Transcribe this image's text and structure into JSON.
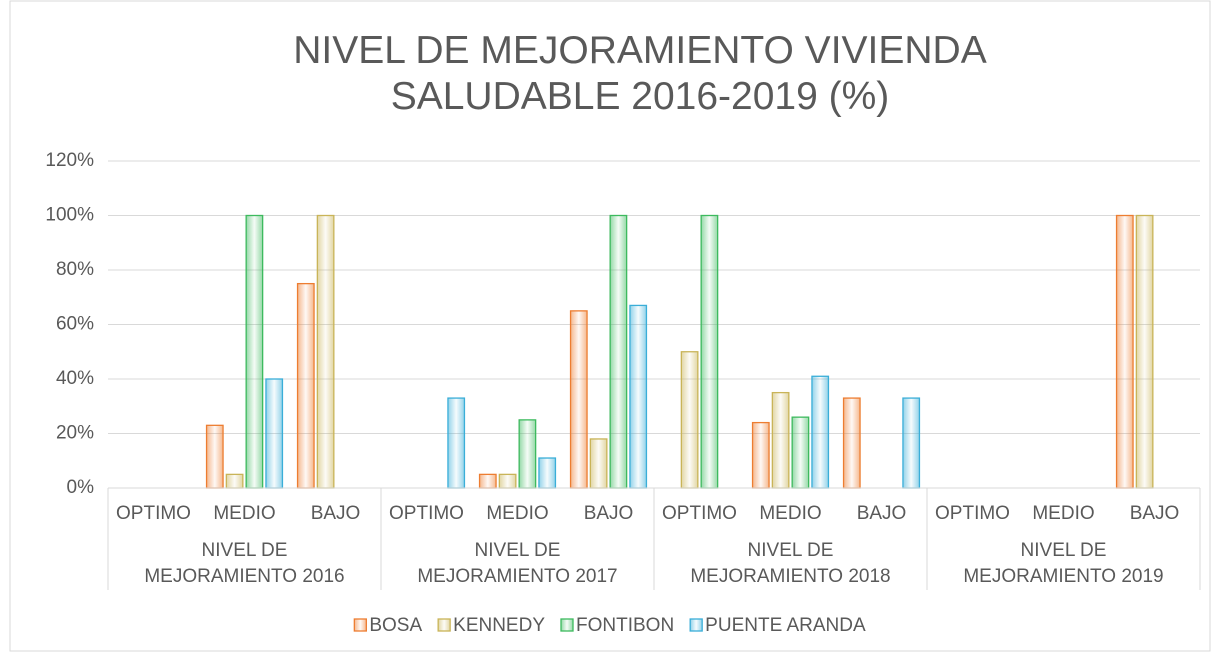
{
  "chart_data": {
    "type": "bar",
    "title": "NIVEL DE MEJORAMIENTO VIVIENDA SALUDABLE 2016-2019 (%)",
    "categories": [
      "OPTIMO",
      "MEDIO",
      "BAJO",
      "OPTIMO",
      "MEDIO",
      "BAJO",
      "OPTIMO",
      "MEDIO",
      "BAJO",
      "OPTIMO",
      "MEDIO",
      "BAJO"
    ],
    "groups": [
      "NIVEL DE MEJORAMIENTO 2016",
      "NIVEL DE MEJORAMIENTO 2017",
      "NIVEL DE MEJORAMIENTO 2018",
      "NIVEL DE MEJORAMIENTO 2019"
    ],
    "series": [
      {
        "name": "BOSA",
        "color": "#ed7d31",
        "values": [
          0,
          23,
          75,
          0,
          5,
          65,
          0,
          24,
          33,
          0,
          0,
          100
        ]
      },
      {
        "name": "KENNEDY",
        "color": "#c9b458",
        "values": [
          0,
          5,
          100,
          0,
          5,
          18,
          50,
          35,
          0,
          0,
          0,
          100
        ]
      },
      {
        "name": "FONTIBON",
        "color": "#3dba5e",
        "values": [
          0,
          100,
          0,
          0,
          25,
          100,
          100,
          26,
          0,
          0,
          0,
          0
        ]
      },
      {
        "name": "PUENTE ARANDA",
        "color": "#3aaed8",
        "values": [
          0,
          40,
          0,
          33,
          11,
          67,
          0,
          41,
          33,
          0,
          0,
          0
        ]
      }
    ],
    "ylim": [
      0,
      120
    ],
    "yticks": [
      {
        "value": 0,
        "label": "0%"
      },
      {
        "value": 20,
        "label": "20%"
      },
      {
        "value": 40,
        "label": "40%"
      },
      {
        "value": 60,
        "label": "60%"
      },
      {
        "value": 80,
        "label": "80%"
      },
      {
        "value": 100,
        "label": "100%"
      },
      {
        "value": 120,
        "label": "120%"
      }
    ],
    "grid": true,
    "legend": "bottom"
  }
}
